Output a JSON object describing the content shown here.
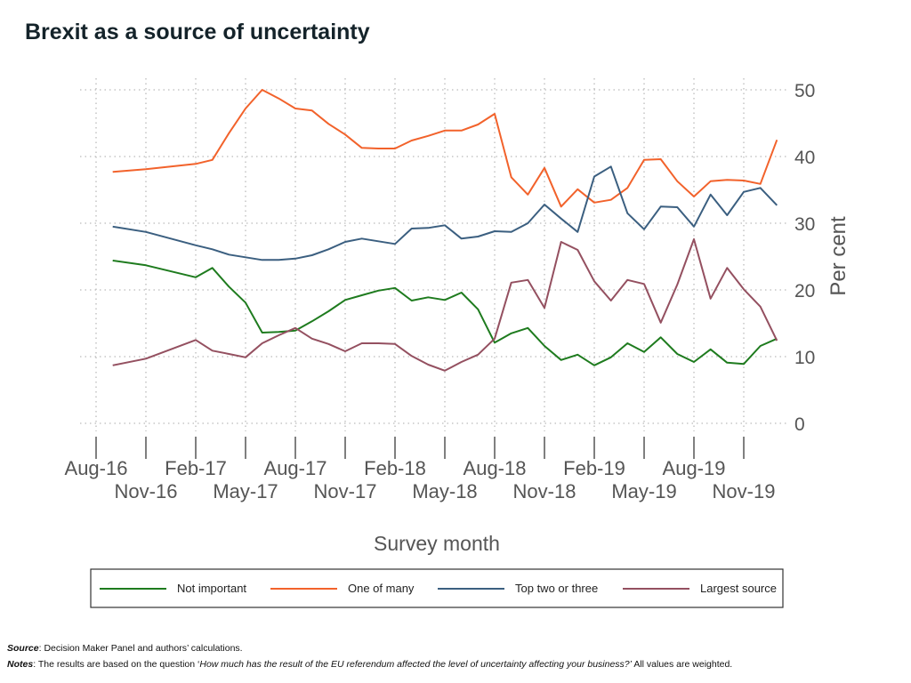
{
  "title": "Brexit as a source of uncertainty",
  "footer": {
    "source_label": "Source",
    "source_text": ": Decision Maker Panel and authors’ calculations.",
    "notes_label": "Notes",
    "notes_text_1": ": The results are based on the question ‘",
    "notes_question": "How much has the result of the EU referendum affected the level of uncertainty affecting your business?’",
    "notes_text_2": " All values are weighted."
  },
  "chart_data": {
    "type": "line",
    "title": "",
    "xlabel": "Survey month",
    "ylabel": "Per cent",
    "ylim": [
      0,
      50
    ],
    "y_ticks": [
      0,
      10,
      20,
      30,
      40,
      50
    ],
    "y_axis_side": "right",
    "grid": true,
    "legend_position": "bottom",
    "x_ticks_row1": [
      "Aug-16",
      "Feb-17",
      "Aug-17",
      "Feb-18",
      "Aug-18",
      "Feb-19",
      "Aug-19"
    ],
    "x_ticks_row2": [
      "Nov-16",
      "May-17",
      "Nov-17",
      "May-18",
      "Nov-18",
      "May-19",
      "Nov-19"
    ],
    "x": [
      "2016-09",
      "2016-11",
      "2017-02",
      "2017-03",
      "2017-04",
      "2017-05",
      "2017-06",
      "2017-07",
      "2017-08",
      "2017-09",
      "2017-10",
      "2017-11",
      "2017-12",
      "2018-01",
      "2018-02",
      "2018-03",
      "2018-04",
      "2018-05",
      "2018-06",
      "2018-07",
      "2018-08",
      "2018-09",
      "2018-10",
      "2018-11",
      "2018-12",
      "2019-01",
      "2019-02",
      "2019-03",
      "2019-04",
      "2019-05",
      "2019-06",
      "2019-07",
      "2019-08",
      "2019-09",
      "2019-10",
      "2019-11",
      "2019-12",
      "2020-01"
    ],
    "series": [
      {
        "name": "Not important",
        "color": "#1e7b1e",
        "values": [
          24.4,
          23.7,
          21.9,
          23.3,
          20.5,
          18.1,
          13.6,
          13.7,
          13.9,
          15.3,
          16.8,
          18.5,
          19.2,
          19.9,
          20.3,
          18.4,
          18.9,
          18.5,
          19.6,
          17.1,
          12.1,
          13.5,
          14.3,
          11.6,
          9.5,
          10.3,
          8.7,
          9.9,
          12.0,
          10.7,
          12.9,
          10.4,
          9.2,
          11.1,
          9.1,
          8.9,
          11.6,
          12.7
        ]
      },
      {
        "name": "One of many",
        "color": "#f2622b",
        "values": [
          37.7,
          38.1,
          38.9,
          39.5,
          43.5,
          47.2,
          50.0,
          48.7,
          47.2,
          46.9,
          44.9,
          43.3,
          41.3,
          41.2,
          41.2,
          42.4,
          43.1,
          43.9,
          43.9,
          44.8,
          46.4,
          36.9,
          34.3,
          38.3,
          32.5,
          35.1,
          33.1,
          33.5,
          35.3,
          39.5,
          39.6,
          36.3,
          34.0,
          36.3,
          36.5,
          36.4,
          35.9,
          42.5
        ]
      },
      {
        "name": "Top two or three",
        "color": "#3b5f80",
        "values": [
          29.5,
          28.7,
          26.7,
          26.1,
          25.3,
          24.9,
          24.5,
          24.5,
          24.7,
          25.2,
          26.1,
          27.2,
          27.7,
          27.3,
          26.9,
          29.2,
          29.3,
          29.7,
          27.7,
          28.0,
          28.8,
          28.7,
          30.0,
          32.8,
          30.7,
          28.7,
          37.0,
          38.5,
          31.5,
          29.1,
          32.5,
          32.4,
          29.5,
          34.3,
          31.2,
          34.7,
          35.3,
          32.7
        ]
      },
      {
        "name": "Largest source",
        "color": "#945060",
        "values": [
          8.7,
          9.7,
          12.5,
          10.9,
          10.4,
          9.9,
          12.0,
          13.2,
          14.3,
          12.7,
          11.9,
          10.8,
          12.0,
          12.0,
          11.9,
          10.1,
          8.8,
          7.9,
          9.2,
          10.3,
          12.7,
          21.1,
          21.5,
          17.3,
          27.2,
          26.0,
          21.3,
          18.4,
          21.5,
          20.9,
          15.1,
          20.8,
          27.6,
          18.7,
          23.3,
          20.1,
          17.5,
          12.4
        ]
      }
    ]
  }
}
